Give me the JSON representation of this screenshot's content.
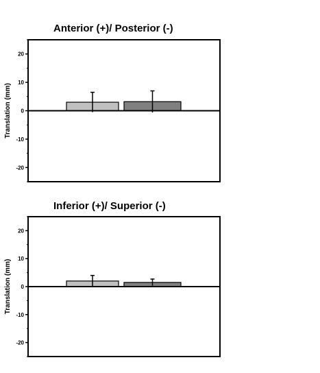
{
  "chart_data": [
    {
      "type": "bar",
      "title": "Anterior (+)/ Posterior (-)",
      "ylabel": "Translation (mm)",
      "xlabel": "",
      "ylim": [
        -25,
        25
      ],
      "yticks": [
        -20,
        -10,
        0,
        10,
        20
      ],
      "categories": [
        "",
        ""
      ],
      "values": [
        3,
        3.2
      ],
      "errors": [
        3.5,
        3.8
      ],
      "colors": [
        "#c0c0c0",
        "#808080"
      ],
      "grid": false
    },
    {
      "type": "bar",
      "title": "Inferior (+)/ Superior (-)",
      "ylabel": "Translation (mm)",
      "xlabel": "",
      "ylim": [
        -25,
        25
      ],
      "yticks": [
        -20,
        -10,
        0,
        10,
        20
      ],
      "categories": [
        "",
        ""
      ],
      "values": [
        2,
        1.5
      ],
      "errors": [
        2,
        1.2
      ],
      "colors": [
        "#c0c0c0",
        "#808080"
      ],
      "grid": false
    }
  ]
}
